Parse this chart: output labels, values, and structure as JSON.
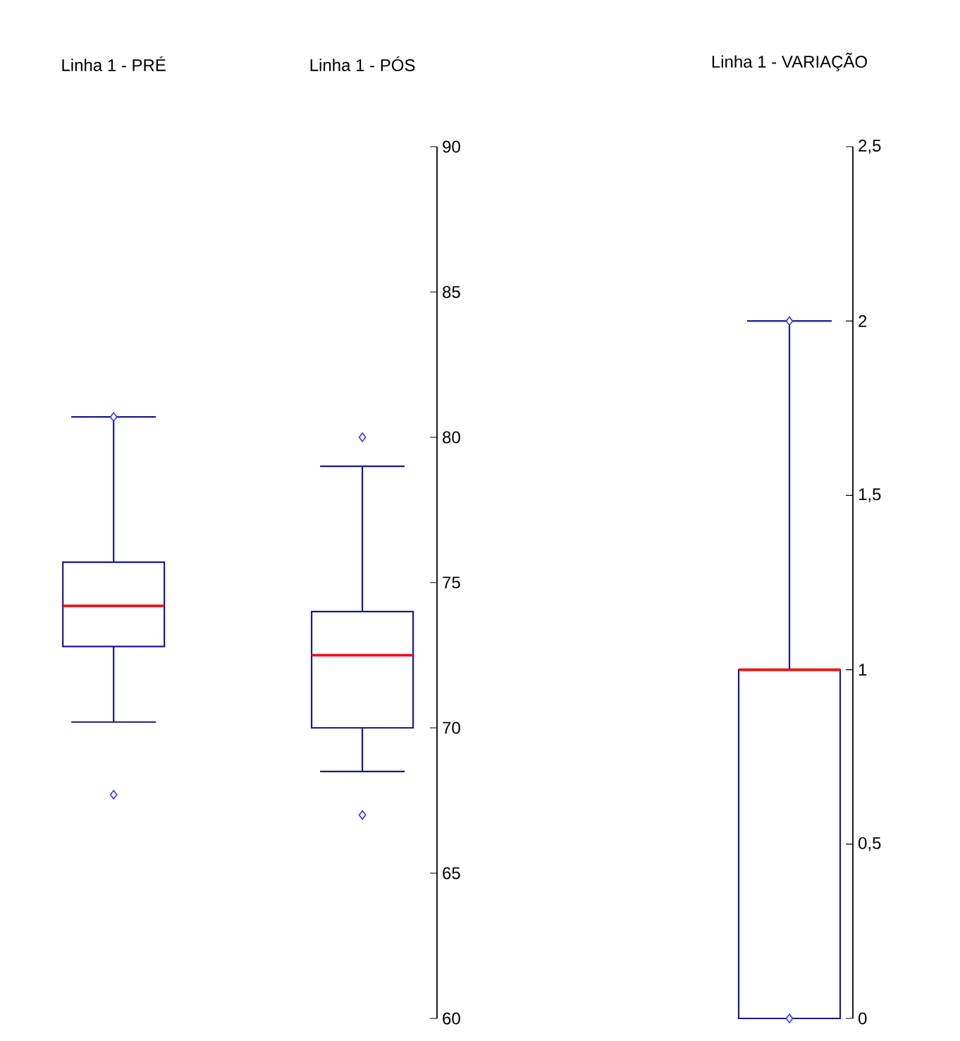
{
  "chart_data": [
    {
      "type": "box",
      "categories": [
        "Linha 1 - PRÉ",
        "Linha 1 - PÓS"
      ],
      "marker": "diamond",
      "ylim": [
        60,
        90
      ],
      "yticks": [
        60,
        65,
        70,
        75,
        80,
        85,
        90
      ],
      "series": [
        {
          "color": "#1a1a8c",
          "boxes": [
            {
              "low": 70.2,
              "q1": 72.8,
              "median": 74.2,
              "q3": 75.7,
              "high": 80.7,
              "outliers": [
                80.7,
                67.7
              ]
            },
            {
              "low": 68.5,
              "q1": 70,
              "median": 72.5,
              "q3": 74,
              "high": 79,
              "outliers": [
                80,
                67
              ]
            }
          ]
        }
      ]
    },
    {
      "type": "box",
      "categories": [
        "Linha 1 - VARIAÇÃO"
      ],
      "marker": "diamond",
      "ylim": [
        0,
        2.5
      ],
      "yticks": [
        0,
        {
          "value": 0.5,
          "label": "0,5"
        },
        1,
        {
          "value": 1.5,
          "label": "1,5"
        },
        2,
        {
          "value": 2.5,
          "label": "2,5"
        }
      ],
      "series": [
        {
          "color": "#1a1a8c",
          "boxes": [
            {
              "low": 0,
              "q1": 0,
              "median": 1,
              "q3": 1,
              "high": 2,
              "outliers": [
                2,
                0
              ]
            }
          ]
        }
      ]
    }
  ]
}
